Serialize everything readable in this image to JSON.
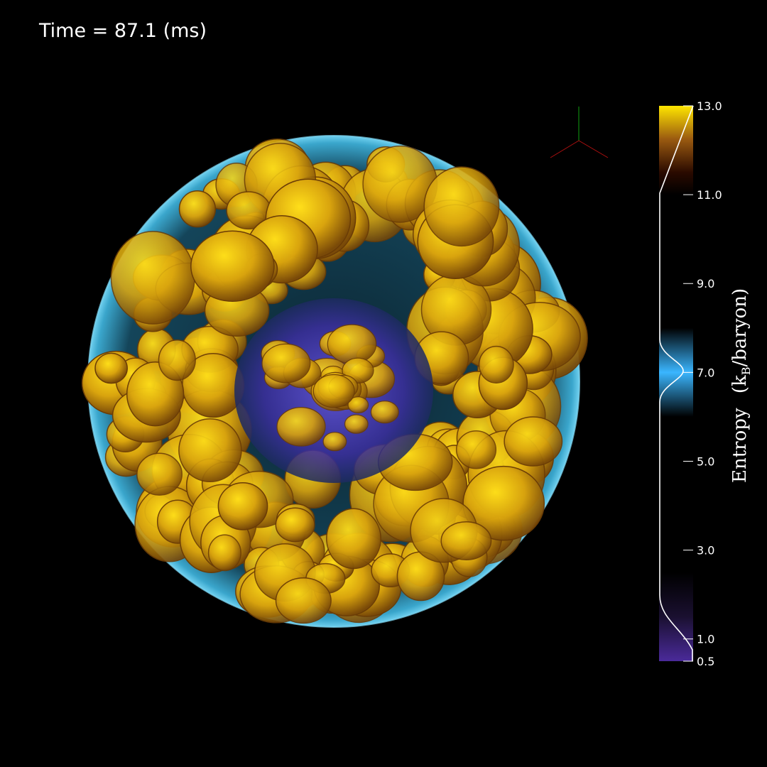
{
  "header": {
    "time_label": "Time = 87.1 (ms)"
  },
  "colorbar": {
    "title_main": "Entropy",
    "title_unit_open": "(k",
    "title_unit_sub": "B",
    "title_unit_close": "/baryon)",
    "vmin": 0.5,
    "vmax": 13.0,
    "ticks": [
      {
        "value": 13.0,
        "label": "13.0"
      },
      {
        "value": 11.0,
        "label": "11.0"
      },
      {
        "value": 9.0,
        "label": "9.0"
      },
      {
        "value": 7.0,
        "label": "7.0"
      },
      {
        "value": 5.0,
        "label": "5.0"
      },
      {
        "value": 3.0,
        "label": "3.0"
      },
      {
        "value": 1.0,
        "label": "1.0"
      },
      {
        "value": 0.5,
        "label": "0.5"
      }
    ],
    "colors": {
      "high": "#ffe600",
      "mid_high": "#9a5a10",
      "dark": "#2a0a00",
      "mid": "#3ab6ff",
      "low": "#4a2a9a"
    }
  },
  "scene": {
    "shell_color": "#2e8fb4",
    "plume_color": "#d49a10",
    "core_color": "#5a4ad0",
    "axis_colors": {
      "x": "#b01010",
      "y": "#10a010"
    }
  }
}
